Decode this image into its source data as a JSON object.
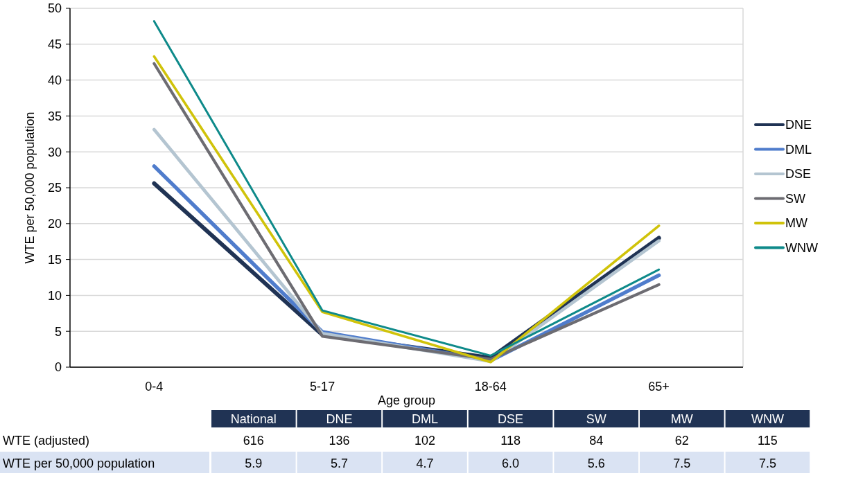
{
  "chart_data": [
    {
      "type": "line",
      "xlabel": "Age group",
      "ylabel": "WTE per 50,000 population",
      "categories": [
        "0-4",
        "5-17",
        "18-64",
        "65+"
      ],
      "series": [
        {
          "name": "DNE",
          "color": "#203354",
          "values": [
            25.6,
            4.5,
            1.3,
            18
          ]
        },
        {
          "name": "DML",
          "color": "#4f7ccc",
          "values": [
            28,
            4.9,
            0.9,
            12.8
          ]
        },
        {
          "name": "DSE",
          "color": "#b4c5d1",
          "values": [
            33.1,
            4.7,
            0.8,
            17.6
          ]
        },
        {
          "name": "SW",
          "color": "#6d6c72",
          "values": [
            42.3,
            4.3,
            1.1,
            11.5
          ]
        },
        {
          "name": "MW",
          "color": "#d0c30a",
          "values": [
            43.3,
            7.7,
            0.7,
            19.7
          ]
        },
        {
          "name": "WNW",
          "color": "#0e8a8a",
          "values": [
            48.2,
            7.9,
            1.6,
            13.6
          ]
        }
      ],
      "ylim": [
        0,
        50
      ],
      "yticks": [
        0,
        5,
        10,
        15,
        20,
        25,
        30,
        35,
        40,
        45,
        50
      ],
      "grid": "y",
      "legend": "right",
      "marker": "none",
      "line_style": "solid"
    },
    {
      "type": "other",
      "categories": [
        "National",
        "DNE",
        "DML",
        "DSE",
        "SW",
        "MW",
        "WNW"
      ],
      "data_labels": true,
      "series": [
        {
          "name": "WTE (adjusted)",
          "values": [
            616,
            136,
            102,
            118,
            84,
            62,
            115
          ]
        },
        {
          "name": "WTE per 50,000 population",
          "value_labels": [
            "5.9",
            "5.7",
            "4.7",
            "6.0",
            "5.6",
            "7.5",
            "7.5"
          ],
          "values": [
            5.9,
            5.7,
            4.7,
            6.0,
            5.6,
            7.5,
            7.5
          ]
        }
      ]
    }
  ]
}
